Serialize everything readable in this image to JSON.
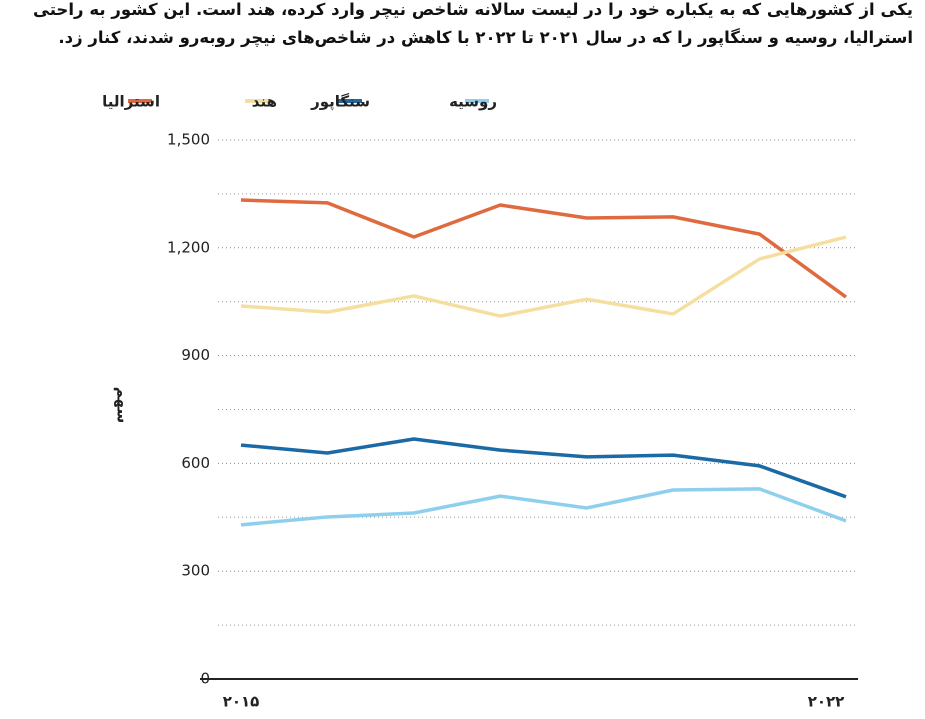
{
  "chart_data": {
    "type": "line",
    "title": "یکی از کشورهایی که به یکباره خود را در لیست سالانه شاخص نیچر وارد کرده، هند است. این کشور به راحتی استرالیا، روسیه و سنگاپور را که در سال ۲۰۲۱ تا ۲۰۲۲ با کاهش در شاخص‌های نیچر روبه‌رو شدند، کنار زد.",
    "y_label": "سهم",
    "categories": [
      "۲۰۱۵",
      null,
      null,
      null,
      null,
      null,
      null,
      "۲۰۲۲"
    ],
    "series": [
      {
        "name": "استرالیا",
        "color": "#e06a3f",
        "values": [
          1333,
          1325,
          1230,
          1319,
          1283,
          1286,
          1238,
          1063
        ]
      },
      {
        "name": "هند",
        "color": "#f5dfa0",
        "values": [
          1038,
          1021,
          1066,
          1010,
          1057,
          1016,
          1169,
          1230
        ]
      },
      {
        "name": "سنگاپور",
        "color": "#1b6aa5",
        "values": [
          651,
          629,
          668,
          637,
          618,
          623,
          593,
          507
        ]
      },
      {
        "name": "روسیه",
        "color": "#8ecfee",
        "values": [
          429,
          451,
          462,
          509,
          476,
          526,
          529,
          440
        ]
      }
    ],
    "ylim": [
      0,
      1500
    ],
    "yticks": [
      0,
      300,
      600,
      900,
      {
        "value": 1200,
        "label": "1,200"
      },
      {
        "value": 1500,
        "label": "1,500"
      }
    ],
    "minor_yticks": [
      150,
      450,
      750,
      1050,
      1350
    ],
    "grid": true
  }
}
